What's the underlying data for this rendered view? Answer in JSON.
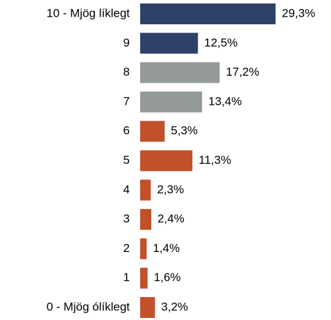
{
  "chart_data": {
    "type": "barh",
    "categories": [
      "10 - Mjög líklegt",
      "9",
      "8",
      "7",
      "6",
      "5",
      "4",
      "3",
      "2",
      "1",
      "0 - Mjög ólíklegt"
    ],
    "values": [
      29.3,
      12.5,
      17.2,
      13.4,
      5.3,
      11.3,
      2.3,
      2.4,
      1.4,
      1.6,
      3.2
    ],
    "value_labels": [
      "29,3%",
      "12,5%",
      "17,2%",
      "13,4%",
      "5,3%",
      "11,3%",
      "2,3%",
      "2,4%",
      "1,4%",
      "1,6%",
      "3,2%"
    ],
    "colors": [
      "#2e4169",
      "#2e4169",
      "#949a9a",
      "#949a9a",
      "#c2502a",
      "#c2502a",
      "#c2502a",
      "#c2502a",
      "#c2502a",
      "#c2502a",
      "#c2502a"
    ]
  }
}
